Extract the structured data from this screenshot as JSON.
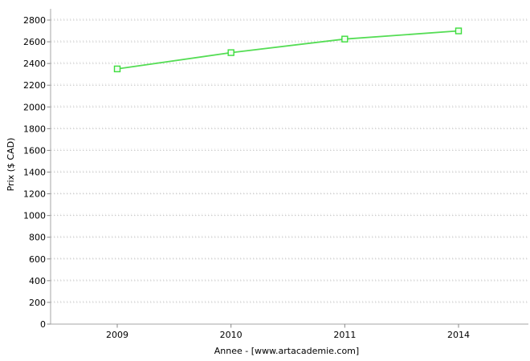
{
  "chart_data": {
    "type": "line",
    "title": "",
    "xlabel": "Annee - [www.artacademie.com]",
    "ylabel": "Prix ($ CAD)",
    "x_axis_type": "category",
    "categories": [
      "2009",
      "2010",
      "2011",
      "2014"
    ],
    "series": [
      {
        "values": [
          2350,
          2500,
          2625,
          2700
        ],
        "marker": "open-square"
      }
    ],
    "ylim": [
      0,
      2800
    ],
    "ytick_step": 200,
    "ytick_labels": [
      "0",
      "200",
      "400",
      "600",
      "800",
      "1000",
      "1200",
      "1400",
      "1600",
      "1800",
      "2000",
      "2200",
      "2400",
      "2600",
      "2800"
    ],
    "grid": "horizontal-dotted",
    "legend": "none",
    "colors": {
      "line": "#55dd55",
      "marker_border": "#3ddd3d",
      "marker_fill": "#f2fcf2",
      "grid": "#c6c6c6",
      "grid_soft": "#e3e3e3",
      "axis": "#a6a6a6",
      "tick": "#888888",
      "text": "#000000",
      "background": "#ffffff"
    }
  }
}
